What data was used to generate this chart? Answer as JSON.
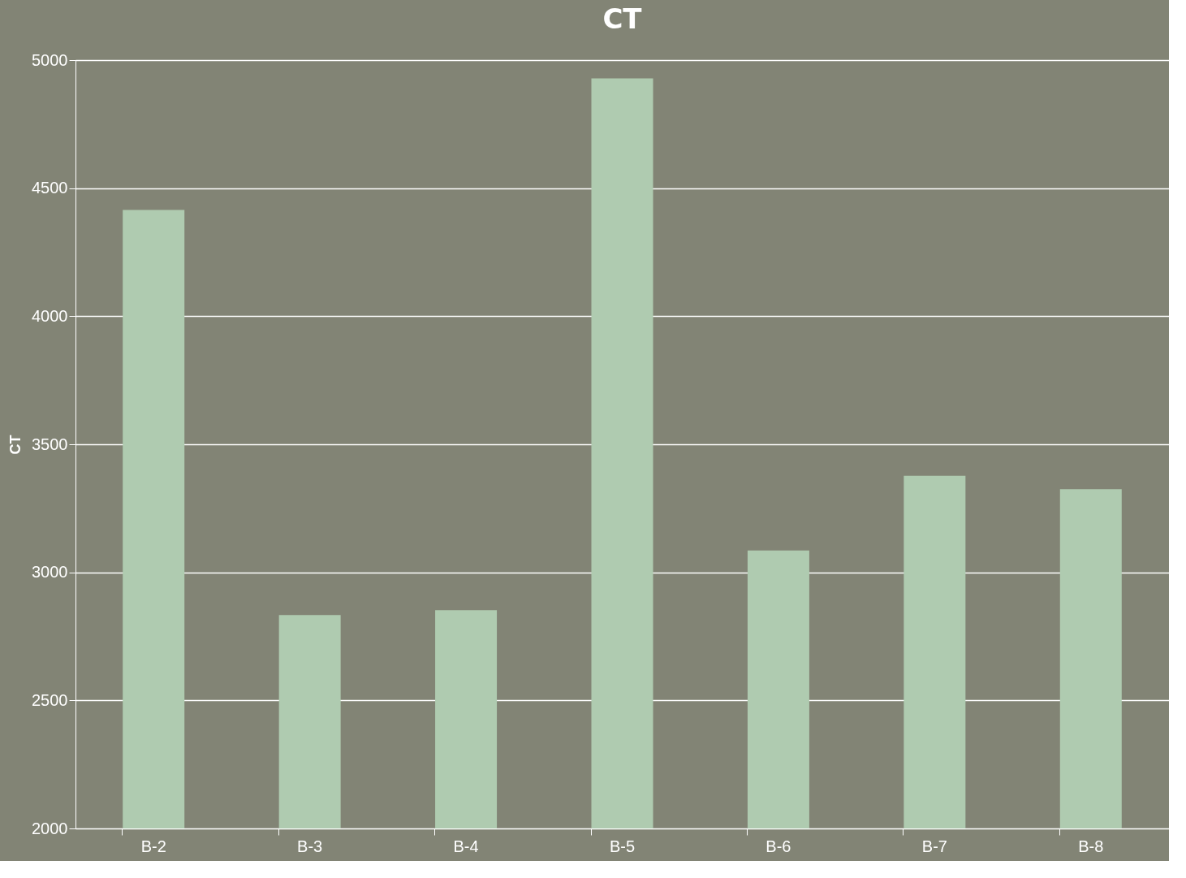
{
  "chart_data": {
    "type": "bar",
    "title": "CT",
    "ylabel": "CT",
    "categories": [
      "B-2",
      "B-3",
      "B-4",
      "B-5",
      "B-6",
      "B-7",
      "B-8"
    ],
    "values": [
      4415,
      2833,
      2852,
      4929,
      3085,
      3377,
      3325
    ],
    "color": "#afcbb0",
    "ylim": [
      2000,
      5000
    ],
    "yticks": [
      2000,
      2500,
      3000,
      3500,
      4000,
      4500,
      5000
    ],
    "grid": "y"
  }
}
